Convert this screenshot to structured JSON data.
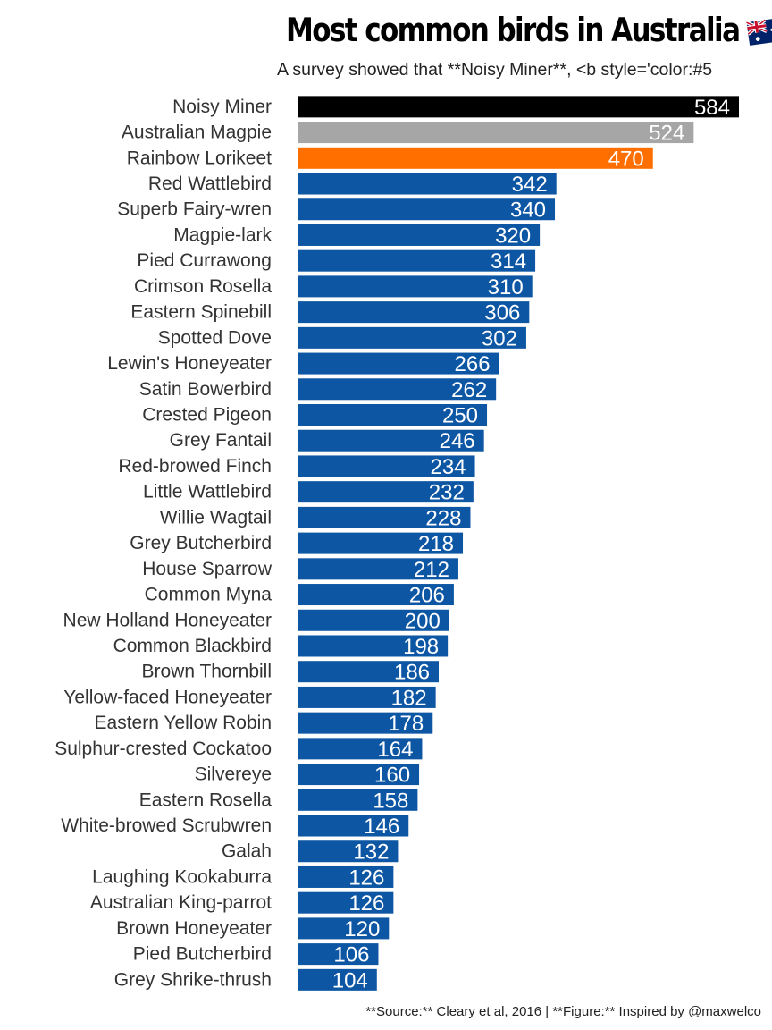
{
  "chart_data": {
    "type": "bar",
    "orientation": "horizontal",
    "title": "Most common birds in Australia",
    "subtitle": "A survey showed that **Noisy Miner**, <b style='color:#5",
    "caption": "**Source:** Cleary et al, 2016 | **Figure:** Inspired by @maxwelco",
    "categories": [
      "Noisy Miner",
      "Australian Magpie",
      "Rainbow Lorikeet",
      "Red Wattlebird",
      "Superb Fairy-wren",
      "Magpie-lark",
      "Pied Currawong",
      "Crimson Rosella",
      "Eastern Spinebill",
      "Spotted Dove",
      "Lewin's Honeyeater",
      "Satin Bowerbird",
      "Crested Pigeon",
      "Grey Fantail",
      "Red-browed Finch",
      "Little Wattlebird",
      "Willie Wagtail",
      "Grey Butcherbird",
      "House Sparrow",
      "Common Myna",
      "New Holland Honeyeater",
      "Common Blackbird",
      "Brown Thornbill",
      "Yellow-faced Honeyeater",
      "Eastern Yellow Robin",
      "Sulphur-crested Cockatoo",
      "Silvereye",
      "Eastern Rosella",
      "White-browed Scrubwren",
      "Galah",
      "Laughing Kookaburra",
      "Australian King-parrot",
      "Brown Honeyeater",
      "Pied Butcherbird",
      "Grey Shrike-thrush"
    ],
    "values": [
      584,
      524,
      470,
      342,
      340,
      320,
      314,
      310,
      306,
      302,
      266,
      262,
      250,
      246,
      234,
      232,
      228,
      218,
      212,
      206,
      200,
      198,
      186,
      182,
      178,
      164,
      160,
      158,
      146,
      132,
      126,
      126,
      120,
      106,
      104
    ],
    "bar_colors": [
      "#000000",
      "#a6a6a6",
      "#ff6f00",
      "#0d56a4",
      "#0d56a4",
      "#0d56a4",
      "#0d56a4",
      "#0d56a4",
      "#0d56a4",
      "#0d56a4",
      "#0d56a4",
      "#0d56a4",
      "#0d56a4",
      "#0d56a4",
      "#0d56a4",
      "#0d56a4",
      "#0d56a4",
      "#0d56a4",
      "#0d56a4",
      "#0d56a4",
      "#0d56a4",
      "#0d56a4",
      "#0d56a4",
      "#0d56a4",
      "#0d56a4",
      "#0d56a4",
      "#0d56a4",
      "#0d56a4",
      "#0d56a4",
      "#0d56a4",
      "#0d56a4",
      "#0d56a4",
      "#0d56a4",
      "#0d56a4",
      "#0d56a4"
    ],
    "default_color": "#0d56a4",
    "value_label_color": "#ffffff",
    "xlim": [
      0,
      600
    ],
    "grid": false,
    "legend": "none",
    "title_icon": "australian-flag-icon"
  }
}
